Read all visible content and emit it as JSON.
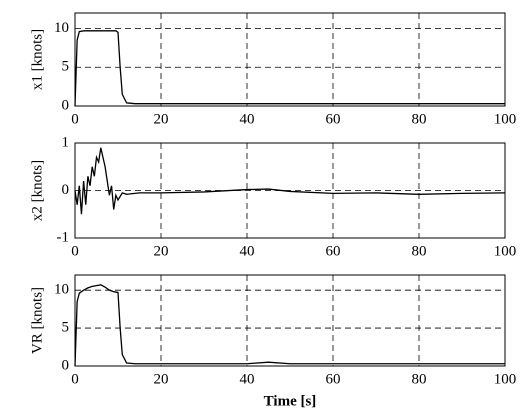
{
  "chart_data": [
    {
      "type": "line",
      "ylabel": "x1 [knots]",
      "x": [
        0,
        0.5,
        1,
        2,
        4,
        6,
        8,
        9.5,
        10,
        10.5,
        11,
        12,
        14,
        20,
        40,
        60,
        80,
        100
      ],
      "series": [
        {
          "name": "x1",
          "color": "#000000",
          "values": [
            0,
            8.5,
            9.6,
            9.7,
            9.7,
            9.7,
            9.7,
            9.7,
            9.5,
            5,
            1.5,
            0.4,
            0.3,
            0.3,
            0.3,
            0.3,
            0.3,
            0.3
          ]
        }
      ],
      "xlim": [
        0,
        100
      ],
      "xticks": [
        0,
        20,
        40,
        60,
        80,
        100
      ],
      "ylim": [
        0,
        12
      ],
      "yticks": [
        0,
        5,
        10
      ],
      "grid": true
    },
    {
      "type": "line",
      "ylabel": "x2 [knots]",
      "x": [
        0,
        0.5,
        1,
        1.5,
        2,
        2.5,
        3,
        3.5,
        4,
        4.5,
        5,
        5.5,
        6,
        6.5,
        7,
        7.5,
        8,
        8.5,
        9,
        9.5,
        10,
        11,
        12,
        15,
        20,
        30,
        40,
        45,
        50,
        60,
        70,
        80,
        90,
        100
      ],
      "series": [
        {
          "name": "x2",
          "color": "#000000",
          "values": [
            0,
            -0.3,
            0.1,
            -0.5,
            0.2,
            -0.3,
            0.3,
            0.1,
            0.5,
            0.3,
            0.7,
            0.6,
            0.9,
            0.7,
            0.5,
            0.2,
            -0.1,
            0.1,
            -0.4,
            -0.1,
            -0.2,
            -0.05,
            -0.08,
            -0.05,
            -0.05,
            -0.03,
            0.02,
            0.03,
            -0.02,
            -0.06,
            -0.05,
            -0.08,
            -0.06,
            -0.05
          ]
        }
      ],
      "xlim": [
        0,
        100
      ],
      "xticks": [
        0,
        20,
        40,
        60,
        80,
        100
      ],
      "ylim": [
        -1,
        1
      ],
      "yticks": [
        -1,
        0,
        1
      ],
      "grid": true
    },
    {
      "type": "line",
      "ylabel": "VR [knots]",
      "xlabel": "Time [s]",
      "x": [
        0,
        0.5,
        1,
        2,
        3,
        4,
        5,
        6,
        7,
        8,
        9,
        10,
        10.5,
        11,
        12,
        14,
        20,
        40,
        45,
        50,
        60,
        80,
        100
      ],
      "series": [
        {
          "name": "VR",
          "color": "#000000",
          "values": [
            0,
            8.5,
            9.6,
            10,
            10.3,
            10.5,
            10.6,
            10.7,
            10.4,
            10,
            9.8,
            9.7,
            5,
            1.5,
            0.4,
            0.3,
            0.3,
            0.3,
            0.5,
            0.3,
            0.3,
            0.3,
            0.3
          ]
        }
      ],
      "xlim": [
        0,
        100
      ],
      "xticks": [
        0,
        20,
        40,
        60,
        80,
        100
      ],
      "ylim": [
        0,
        12
      ],
      "yticks": [
        0,
        5,
        10
      ],
      "grid": true
    }
  ]
}
